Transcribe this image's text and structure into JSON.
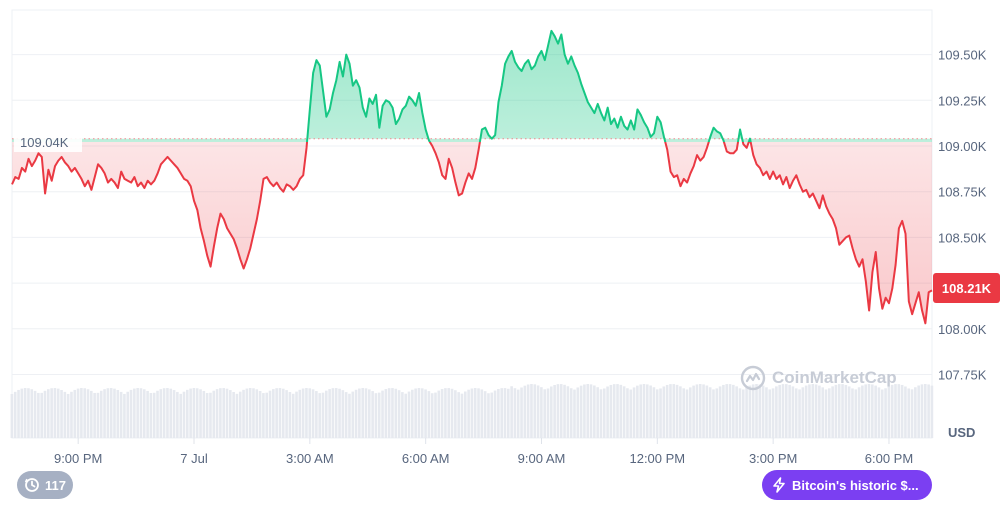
{
  "chart_data": {
    "type": "area",
    "currency": "USD",
    "x_ticks": [
      "9:00 PM",
      "7 Jul",
      "3:00 AM",
      "6:00 AM",
      "9:00 AM",
      "12:00 PM",
      "3:00 PM",
      "6:00 PM"
    ],
    "y_ticks": [
      "109.50K",
      "109.25K",
      "109.00K",
      "108.75K",
      "108.50K",
      "108.00K",
      "107.75K"
    ],
    "y_range": [
      107.7,
      109.7
    ],
    "baseline_value": 109.04,
    "baseline_label": "109.04K",
    "current_value": 108.21,
    "current_label": "108.21K",
    "up_color": "#16c784",
    "down_color": "#ea3943",
    "volume_color": "#e6e9ef",
    "series": [
      {
        "values": [
          108.79,
          108.83,
          108.82,
          108.88,
          108.86,
          108.93,
          108.89,
          108.92,
          108.96,
          108.94,
          108.74,
          108.87,
          108.81,
          108.89,
          108.92,
          108.94,
          108.91,
          108.89,
          108.86,
          108.88,
          108.85,
          108.82,
          108.78,
          108.81,
          108.76,
          108.83,
          108.9,
          108.88,
          108.85,
          108.8,
          108.82,
          108.8,
          108.77,
          108.86,
          108.82,
          108.81,
          108.8,
          108.83,
          108.78,
          108.8,
          108.77,
          108.81,
          108.79,
          108.81,
          108.85,
          108.9,
          108.92,
          108.94,
          108.92,
          108.9,
          108.88,
          108.85,
          108.82,
          108.81,
          108.78,
          108.7,
          108.65,
          108.55,
          108.48,
          108.4,
          108.34,
          108.45,
          108.55,
          108.63,
          108.6,
          108.55,
          108.52,
          108.49,
          108.44,
          108.38,
          108.33,
          108.38,
          108.44,
          108.52,
          108.6,
          108.7,
          108.82,
          108.83,
          108.8,
          108.78,
          108.8,
          108.77,
          108.75,
          108.79,
          108.78,
          108.76,
          108.78,
          108.82,
          108.84,
          108.99,
          109.2,
          109.4,
          109.47,
          109.44,
          109.3,
          109.16,
          109.2,
          109.29,
          109.36,
          109.46,
          109.38,
          109.5,
          109.45,
          109.33,
          109.36,
          109.32,
          109.21,
          109.16,
          109.26,
          109.23,
          109.28,
          109.1,
          109.22,
          109.25,
          109.24,
          109.21,
          109.12,
          109.15,
          109.2,
          109.22,
          109.27,
          109.25,
          109.22,
          109.29,
          109.18,
          109.09,
          109.03,
          109.0,
          108.96,
          108.91,
          108.84,
          108.82,
          108.93,
          108.88,
          108.8,
          108.73,
          108.74,
          108.8,
          108.85,
          108.82,
          108.88,
          108.98,
          109.09,
          109.1,
          109.06,
          109.04,
          109.06,
          109.24,
          109.33,
          109.45,
          109.49,
          109.52,
          109.46,
          109.43,
          109.41,
          109.45,
          109.47,
          109.42,
          109.44,
          109.49,
          109.52,
          109.47,
          109.55,
          109.63,
          109.6,
          109.56,
          109.61,
          109.5,
          109.45,
          109.49,
          109.44,
          109.4,
          109.34,
          109.29,
          109.24,
          109.21,
          109.18,
          109.23,
          109.18,
          109.14,
          109.21,
          109.12,
          109.15,
          109.1,
          109.16,
          109.11,
          109.09,
          109.14,
          109.09,
          109.2,
          109.17,
          109.13,
          109.1,
          109.05,
          109.07,
          109.16,
          109.13,
          109.05,
          108.98,
          108.86,
          108.83,
          108.84,
          108.78,
          108.82,
          108.8,
          108.85,
          108.89,
          108.95,
          108.92,
          108.94,
          108.99,
          109.05,
          109.1,
          109.08,
          109.07,
          109.03,
          108.97,
          108.96,
          108.96,
          108.98,
          109.09,
          109.01,
          108.99,
          109.04,
          108.95,
          108.9,
          108.88,
          108.84,
          108.86,
          108.82,
          108.86,
          108.82,
          108.84,
          108.79,
          108.83,
          108.77,
          108.81,
          108.84,
          108.79,
          108.75,
          108.76,
          108.72,
          108.74,
          108.7,
          108.66,
          108.73,
          108.67,
          108.63,
          108.6,
          108.55,
          108.46,
          108.48,
          108.5,
          108.51,
          108.44,
          108.38,
          108.34,
          108.38,
          108.26,
          108.1,
          108.31,
          108.42,
          108.22,
          108.11,
          108.17,
          108.14,
          108.22,
          108.35,
          108.55,
          108.59,
          108.52,
          108.15,
          108.08,
          108.14,
          108.2,
          108.1,
          108.03,
          108.2,
          108.21
        ]
      }
    ]
  },
  "badges": {
    "comments_count": "117",
    "news_label": "Bitcoin's historic $...",
    "watermark": "CoinMarketCap",
    "clock_icon": "clock-icon",
    "bolt_icon": "lightning-icon"
  }
}
